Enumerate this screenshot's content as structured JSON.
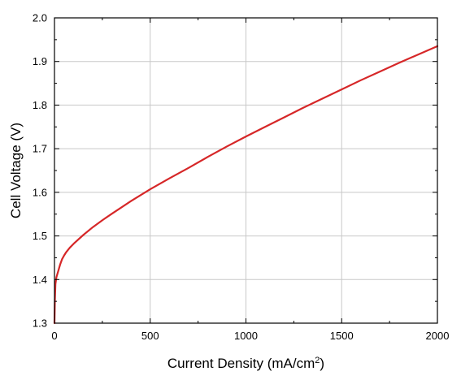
{
  "chart_data": {
    "type": "line",
    "xlabel": "Current Density (mA/cm",
    "xlabel_superscript": "2",
    "xlabel_suffix": ")",
    "ylabel": "Cell Voltage (V)",
    "xlim": [
      0,
      2000
    ],
    "ylim": [
      1.3,
      2.0
    ],
    "x_ticks": [
      "0",
      "500",
      "1000",
      "1500",
      "2000"
    ],
    "y_ticks": [
      "1.3",
      "1.4",
      "1.5",
      "1.6",
      "1.7",
      "1.8",
      "1.9",
      "2.0"
    ],
    "grid": true,
    "line_color": "#d62728",
    "series": [
      {
        "x": [
          0,
          2,
          5,
          10,
          20,
          30,
          40,
          50,
          60,
          80,
          100,
          150,
          200,
          250,
          300,
          400,
          500,
          600,
          700,
          800,
          900,
          1000,
          1100,
          1200,
          1300,
          1400,
          1500,
          1600,
          1700,
          1800,
          1900,
          2000
        ],
        "y": [
          1.3,
          1.35,
          1.39,
          1.405,
          1.42,
          1.435,
          1.447,
          1.455,
          1.462,
          1.473,
          1.482,
          1.502,
          1.52,
          1.536,
          1.551,
          1.58,
          1.607,
          1.632,
          1.656,
          1.681,
          1.705,
          1.728,
          1.75,
          1.772,
          1.794,
          1.815,
          1.836,
          1.857,
          1.877,
          1.897,
          1.916,
          1.935
        ]
      }
    ]
  }
}
